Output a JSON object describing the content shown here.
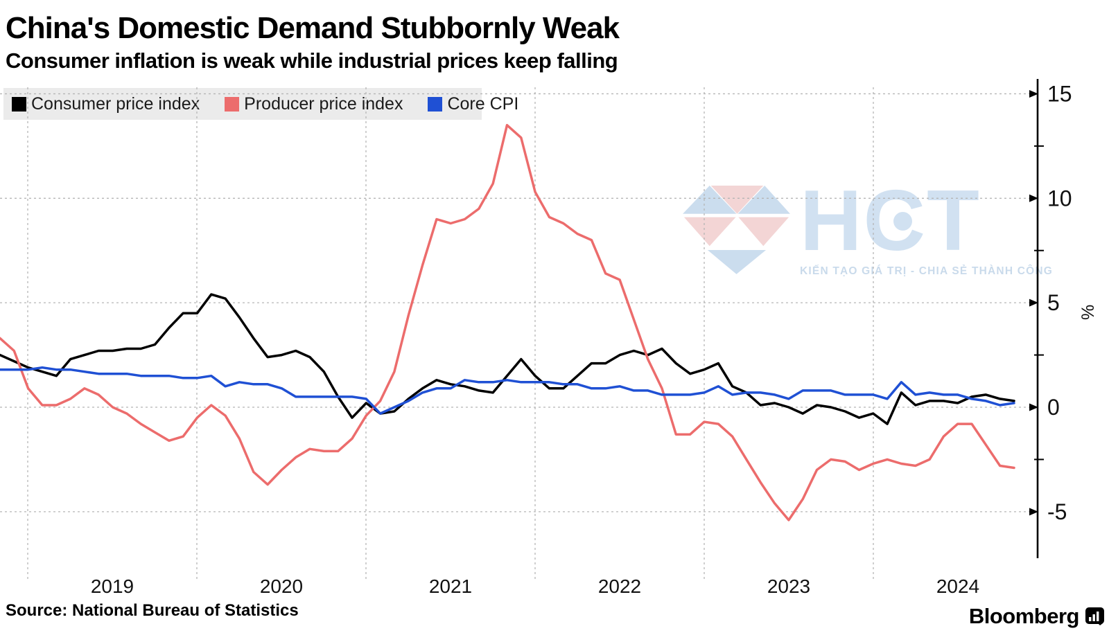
{
  "header": {
    "title": "China's Domestic Demand Stubbornly Weak",
    "subtitle": "Consumer inflation is weak while industrial prices keep falling"
  },
  "legend": {
    "items": [
      {
        "label": "Consumer price index",
        "color": "#000000"
      },
      {
        "label": "Producer price index",
        "color": "#ec6c6c"
      },
      {
        "label": "Core CPI",
        "color": "#1f50d4"
      }
    ]
  },
  "chart_data": {
    "type": "line",
    "frequency": "monthly",
    "x_start": "2018-10",
    "x_end": "2024-10",
    "x_tick_labels": [
      "2019",
      "2020",
      "2021",
      "2022",
      "2023",
      "2024"
    ],
    "ylabel": "%",
    "ylim": [
      -6.5,
      15.6
    ],
    "y_ticks": [
      15,
      10,
      5,
      0,
      -5
    ],
    "y_minor_ticks": [
      12.5,
      7.5,
      2.5,
      -2.5
    ],
    "grid": true,
    "legend_position": "top-left",
    "series": [
      {
        "name": "Consumer price index",
        "color": "#000000",
        "values": [
          2.5,
          2.2,
          1.9,
          1.7,
          1.5,
          2.3,
          2.5,
          2.7,
          2.7,
          2.8,
          2.8,
          3.0,
          3.8,
          4.5,
          4.5,
          5.4,
          5.2,
          4.3,
          3.3,
          2.4,
          2.5,
          2.7,
          2.4,
          1.7,
          0.5,
          -0.5,
          0.2,
          -0.3,
          -0.2,
          0.4,
          0.9,
          1.3,
          1.1,
          1.0,
          0.8,
          0.7,
          1.5,
          2.3,
          1.5,
          0.9,
          0.9,
          1.5,
          2.1,
          2.1,
          2.5,
          2.7,
          2.5,
          2.8,
          2.1,
          1.6,
          1.8,
          2.1,
          1.0,
          0.7,
          0.1,
          0.2,
          0.0,
          -0.3,
          0.1,
          0.0,
          -0.2,
          -0.5,
          -0.3,
          -0.8,
          0.7,
          0.1,
          0.3,
          0.3,
          0.2,
          0.5,
          0.6,
          0.4,
          0.3
        ]
      },
      {
        "name": "Producer price index",
        "color": "#ec6c6c",
        "values": [
          3.3,
          2.7,
          0.9,
          0.1,
          0.1,
          0.4,
          0.9,
          0.6,
          0.0,
          -0.3,
          -0.8,
          -1.2,
          -1.6,
          -1.4,
          -0.5,
          0.1,
          -0.4,
          -1.5,
          -3.1,
          -3.7,
          -3.0,
          -2.4,
          -2.0,
          -2.1,
          -2.1,
          -1.5,
          -0.4,
          0.3,
          1.7,
          4.4,
          6.8,
          9.0,
          8.8,
          9.0,
          9.5,
          10.7,
          13.5,
          12.9,
          10.3,
          9.1,
          8.8,
          8.3,
          8.0,
          6.4,
          6.1,
          4.2,
          2.3,
          0.9,
          -1.3,
          -1.3,
          -0.7,
          -0.8,
          -1.4,
          -2.5,
          -3.6,
          -4.6,
          -5.4,
          -4.4,
          -3.0,
          -2.5,
          -2.6,
          -3.0,
          -2.7,
          -2.5,
          -2.7,
          -2.8,
          -2.5,
          -1.4,
          -0.8,
          -0.8,
          -1.8,
          -2.8,
          -2.9
        ]
      },
      {
        "name": "Core CPI",
        "color": "#1f50d4",
        "values": [
          1.8,
          1.8,
          1.8,
          1.9,
          1.8,
          1.8,
          1.7,
          1.6,
          1.6,
          1.6,
          1.5,
          1.5,
          1.5,
          1.4,
          1.4,
          1.5,
          1.0,
          1.2,
          1.1,
          1.1,
          0.9,
          0.5,
          0.5,
          0.5,
          0.5,
          0.5,
          0.4,
          -0.3,
          0.0,
          0.3,
          0.7,
          0.9,
          0.9,
          1.3,
          1.2,
          1.2,
          1.3,
          1.2,
          1.2,
          1.2,
          1.1,
          1.1,
          0.9,
          0.9,
          1.0,
          0.8,
          0.8,
          0.6,
          0.6,
          0.6,
          0.7,
          1.0,
          0.6,
          0.7,
          0.7,
          0.6,
          0.4,
          0.8,
          0.8,
          0.8,
          0.6,
          0.6,
          0.6,
          0.4,
          1.2,
          0.6,
          0.7,
          0.6,
          0.6,
          0.4,
          0.3,
          0.1,
          0.2
        ]
      }
    ]
  },
  "watermark": {
    "text": "HCT",
    "tagline": "KIẾN TẠO GIÁ TRỊ - CHIA SẺ THÀNH CÔNG",
    "blue": "#c9dcee",
    "pink": "#f3d3d3"
  },
  "footer": {
    "source": "Source: National Bureau of Statistics",
    "brand": "Bloomberg"
  }
}
